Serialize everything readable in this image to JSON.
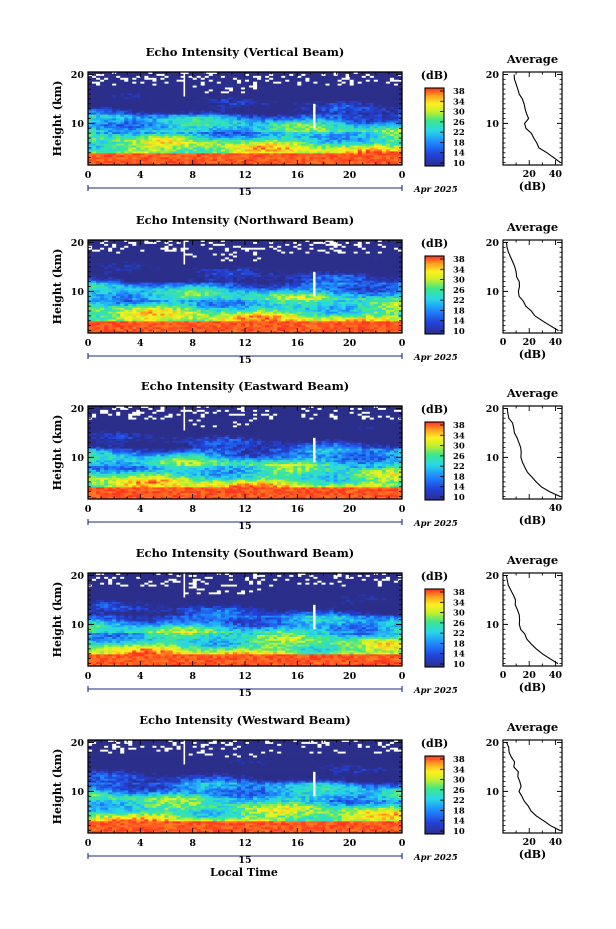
{
  "figure": {
    "xlabel": "Local Time",
    "date_label": "Apr 2025",
    "day_label": "15",
    "colorbar_label": "(dB)",
    "average_title": "Average",
    "average_xlabel": "(dB)"
  },
  "chart_data": [
    {
      "type": "heatmap",
      "title": "Echo Intensity (Vertical Beam)",
      "xlabel": "Local Time",
      "ylabel": "Height (km)",
      "x_ticks": [
        "0",
        "4",
        "8",
        "12",
        "16",
        "20",
        "0"
      ],
      "xlim": [
        0,
        24
      ],
      "y_ticks": [
        "10",
        "20"
      ],
      "ylim": [
        1.5,
        20.5
      ],
      "colorbar": {
        "label": "(dB)",
        "ticks": [
          "10",
          "14",
          "18",
          "22",
          "26",
          "30",
          "34",
          "38"
        ],
        "range": [
          10,
          38
        ]
      },
      "average_profile": {
        "title": "Average",
        "xlabel": "(dB)",
        "x_ticks": [
          "20",
          "40"
        ],
        "xlim": [
          0,
          45
        ],
        "height": [
          2,
          3,
          4,
          5,
          6,
          7,
          8,
          9,
          10,
          11,
          12,
          13,
          14,
          15,
          16,
          17,
          18,
          19,
          20
        ],
        "db": [
          44,
          38,
          33,
          28,
          26,
          24,
          21,
          18,
          17,
          19,
          18,
          17,
          16,
          14,
          12,
          12,
          10,
          9,
          8
        ]
      }
    },
    {
      "type": "heatmap",
      "title": "Echo Intensity (Northward Beam)",
      "xlabel": "Local Time",
      "ylabel": "Height (km)",
      "x_ticks": [
        "0",
        "4",
        "8",
        "12",
        "16",
        "20",
        "0"
      ],
      "xlim": [
        0,
        24
      ],
      "y_ticks": [
        "10",
        "20"
      ],
      "ylim": [
        1.5,
        20.5
      ],
      "colorbar": {
        "label": "(dB)",
        "ticks": [
          "10",
          "14",
          "18",
          "22",
          "26",
          "30",
          "34",
          "38"
        ],
        "range": [
          10,
          38
        ]
      },
      "average_profile": {
        "title": "Average",
        "xlabel": "(dB)",
        "x_ticks": [
          "0",
          "20",
          "40"
        ],
        "xlim": [
          0,
          45
        ],
        "height": [
          2,
          3,
          4,
          5,
          6,
          7,
          8,
          9,
          10,
          11,
          12,
          13,
          14,
          15,
          16,
          17,
          18,
          19,
          20
        ],
        "db": [
          42,
          36,
          30,
          25,
          21,
          18,
          15,
          13,
          11,
          13,
          12,
          11,
          10,
          9,
          7,
          6,
          4,
          3,
          2
        ]
      }
    },
    {
      "type": "heatmap",
      "title": "Echo Intensity (Eastward Beam)",
      "xlabel": "Local Time",
      "ylabel": "Height (km)",
      "x_ticks": [
        "0",
        "4",
        "8",
        "12",
        "16",
        "20",
        "0"
      ],
      "xlim": [
        0,
        24
      ],
      "y_ticks": [
        "10",
        "20"
      ],
      "ylim": [
        1.5,
        20.5
      ],
      "colorbar": {
        "label": "(dB)",
        "ticks": [
          "10",
          "14",
          "18",
          "22",
          "26",
          "30",
          "34",
          "38"
        ],
        "range": [
          10,
          38
        ]
      },
      "average_profile": {
        "title": "Average",
        "xlabel": "(dB)",
        "x_ticks": [
          "40"
        ],
        "xlim": [
          0,
          45
        ],
        "height": [
          2,
          3,
          4,
          5,
          6,
          7,
          8,
          9,
          10,
          11,
          12,
          13,
          14,
          15,
          16,
          17,
          18,
          19,
          20
        ],
        "db": [
          43,
          36,
          30,
          25,
          22,
          19,
          17,
          15,
          13,
          14,
          13,
          12,
          11,
          9,
          8,
          7,
          5,
          4,
          3
        ]
      }
    },
    {
      "type": "heatmap",
      "title": "Echo Intensity (Southward Beam)",
      "xlabel": "Local Time",
      "ylabel": "Height (km)",
      "x_ticks": [
        "0",
        "4",
        "8",
        "12",
        "16",
        "20",
        "0"
      ],
      "xlim": [
        0,
        24
      ],
      "y_ticks": [
        "10",
        "20"
      ],
      "ylim": [
        1.5,
        20.5
      ],
      "colorbar": {
        "label": "(dB)",
        "ticks": [
          "10",
          "14",
          "18",
          "22",
          "26",
          "30",
          "34",
          "38"
        ],
        "range": [
          10,
          38
        ]
      },
      "average_profile": {
        "title": "Average",
        "xlabel": "(dB)",
        "x_ticks": [
          "0",
          "20",
          "40"
        ],
        "xlim": [
          0,
          45
        ],
        "height": [
          2,
          3,
          4,
          5,
          6,
          7,
          8,
          9,
          10,
          11,
          12,
          13,
          14,
          15,
          16,
          17,
          18,
          19,
          20
        ],
        "db": [
          42,
          36,
          30,
          25,
          21,
          18,
          16,
          14,
          12,
          13,
          12,
          11,
          10,
          9,
          7,
          6,
          4,
          3,
          2
        ]
      }
    },
    {
      "type": "heatmap",
      "title": "Echo Intensity (Westward Beam)",
      "xlabel": "Local Time",
      "ylabel": "Height (km)",
      "x_ticks": [
        "0",
        "4",
        "8",
        "12",
        "16",
        "20",
        "0"
      ],
      "xlim": [
        0,
        24
      ],
      "y_ticks": [
        "10",
        "20"
      ],
      "ylim": [
        1.5,
        20.5
      ],
      "colorbar": {
        "label": "(dB)",
        "ticks": [
          "10",
          "14",
          "18",
          "22",
          "26",
          "30",
          "34",
          "38"
        ],
        "range": [
          10,
          38
        ]
      },
      "average_profile": {
        "title": "Average",
        "xlabel": "(dB)",
        "x_ticks": [
          "20",
          "40"
        ],
        "xlim": [
          0,
          45
        ],
        "height": [
          2,
          3,
          4,
          5,
          6,
          7,
          8,
          9,
          10,
          11,
          12,
          13,
          14,
          15,
          16,
          17,
          18,
          19,
          20
        ],
        "db": [
          43,
          37,
          31,
          26,
          22,
          19,
          17,
          15,
          13,
          14,
          13,
          12,
          11,
          9,
          8,
          7,
          5,
          4,
          3
        ]
      }
    }
  ]
}
